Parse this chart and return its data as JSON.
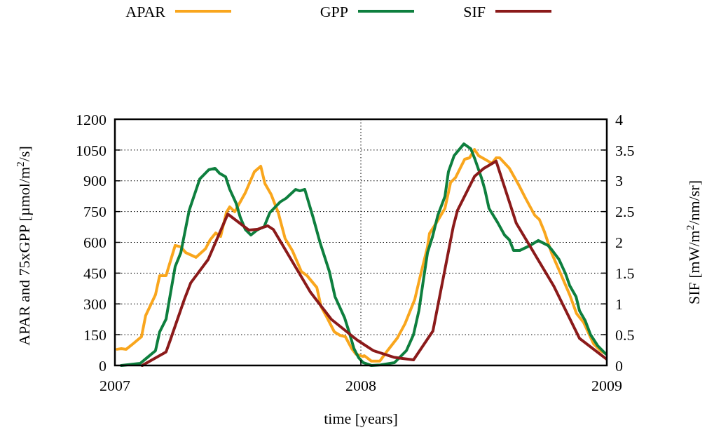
{
  "chart_data": {
    "type": "line",
    "xlabel": "time [years]",
    "ylabel": "APAR and 75xGPP [µmol/m$^{2}$/s]",
    "y2label": "SIF [mW/m$^{2}$/nm/sr]",
    "xlim": [
      2007,
      2009
    ],
    "xticks": [
      2007,
      2008,
      2009
    ],
    "ylim": [
      0,
      1200
    ],
    "yticks": [
      0,
      150,
      300,
      450,
      600,
      750,
      900,
      1050,
      1200
    ],
    "y2lim": [
      0,
      4
    ],
    "y2ticks": [
      0,
      0.5,
      1,
      1.5,
      2,
      2.5,
      3,
      3.5,
      4
    ],
    "grid": true,
    "legend": "top",
    "line_style": "solid",
    "marker": "none",
    "series": [
      {
        "name": "APAR",
        "color": "#f9a61d",
        "x": [
          2007.009,
          2007.026,
          2007.046,
          2007.074,
          2007.108,
          2007.125,
          2007.165,
          2007.182,
          2007.208,
          2007.245,
          2007.268,
          2007.288,
          2007.33,
          2007.368,
          2007.387,
          2007.41,
          2007.43,
          2007.453,
          2007.467,
          2007.487,
          2007.53,
          2007.567,
          2007.593,
          2007.61,
          2007.635,
          2007.664,
          2007.692,
          2007.721,
          2007.758,
          2007.781,
          2007.821,
          2007.838,
          2007.863,
          2007.892,
          2007.915,
          2007.937,
          2007.963,
          2007.98,
          2008.009,
          2008.014,
          2008.043,
          2008.077,
          2008.108,
          2008.148,
          2008.179,
          2008.219,
          2008.242,
          2008.271,
          2008.279,
          2008.308,
          2008.342,
          2008.365,
          2008.385,
          2008.422,
          2008.442,
          2008.462,
          2008.479,
          2008.504,
          2008.533,
          2008.55,
          2008.564,
          2008.604,
          2008.641,
          2008.67,
          2008.707,
          2008.726,
          2008.746,
          2008.775,
          2008.812,
          2008.849,
          2008.877,
          2008.906,
          2008.946,
          2008.974,
          2009.0
        ],
        "values": [
          79,
          82,
          79,
          106,
          140,
          243,
          345,
          438,
          438,
          585,
          578,
          550,
          527,
          568,
          612,
          646,
          629,
          745,
          773,
          749,
          841,
          944,
          971,
          886,
          834,
          745,
          619,
          561,
          458,
          438,
          380,
          287,
          232,
          164,
          147,
          140,
          82,
          55,
          44,
          48,
          21,
          21,
          72,
          133,
          202,
          321,
          438,
          578,
          643,
          697,
          766,
          892,
          916,
          1005,
          1012,
          1053,
          1022,
          1005,
          985,
          1012,
          1012,
          961,
          882,
          814,
          732,
          711,
          653,
          550,
          448,
          345,
          253,
          209,
          106,
          72,
          55
        ]
      },
      {
        "name": "GPP",
        "color": "#0e7f3e",
        "x": [
          2007.026,
          2007.103,
          2007.131,
          2007.165,
          2007.182,
          2007.208,
          2007.225,
          2007.245,
          2007.268,
          2007.302,
          2007.345,
          2007.382,
          2007.407,
          2007.425,
          2007.45,
          2007.467,
          2007.493,
          2007.51,
          2007.53,
          2007.553,
          2007.578,
          2007.607,
          2007.63,
          2007.672,
          2007.695,
          2007.735,
          2007.752,
          2007.772,
          2007.806,
          2007.835,
          2007.872,
          2007.895,
          2007.934,
          2007.952,
          2007.972,
          2007.991,
          2008.009,
          2008.043,
          2008.08,
          2008.137,
          2008.185,
          2008.214,
          2008.236,
          2008.251,
          2008.271,
          2008.291,
          2008.313,
          2008.342,
          2008.356,
          2008.379,
          2008.419,
          2008.447,
          2008.464,
          2008.49,
          2008.504,
          2008.521,
          2008.556,
          2008.584,
          2008.604,
          2008.621,
          2008.647,
          2008.689,
          2008.721,
          2008.761,
          2008.778,
          2008.806,
          2008.832,
          2008.849,
          2008.875,
          2008.889,
          2008.912,
          2008.934,
          2008.963,
          2008.997
        ],
        "values": [
          0,
          10,
          38,
          72,
          164,
          226,
          345,
          482,
          550,
          756,
          909,
          954,
          961,
          937,
          920,
          858,
          790,
          721,
          663,
          636,
          660,
          677,
          745,
          797,
          814,
          858,
          851,
          858,
          721,
          595,
          458,
          335,
          232,
          164,
          82,
          38,
          14,
          0,
          3,
          14,
          72,
          150,
          267,
          390,
          550,
          626,
          732,
          824,
          944,
          1022,
          1080,
          1056,
          1005,
          916,
          858,
          766,
          697,
          636,
          612,
          561,
          561,
          585,
          609,
          585,
          561,
          516,
          448,
          390,
          335,
          267,
          219,
          150,
          96,
          55
        ]
      },
      {
        "name": "SIF",
        "color": "#8b1a1a",
        "axis": "y2",
        "x": [
          2007.111,
          2007.208,
          2007.225,
          2007.282,
          2007.308,
          2007.379,
          2007.459,
          2007.544,
          2007.578,
          2007.621,
          2007.644,
          2007.795,
          2007.88,
          2007.986,
          2008.051,
          2008.137,
          2008.214,
          2008.293,
          2008.376,
          2008.393,
          2008.462,
          2008.499,
          2008.55,
          2008.632,
          2008.783,
          2008.889,
          2009.0
        ],
        "values": [
          0,
          0.22,
          0.41,
          1.07,
          1.34,
          1.72,
          2.46,
          2.2,
          2.21,
          2.27,
          2.21,
          1.19,
          0.75,
          0.41,
          0.24,
          0.13,
          0.09,
          0.56,
          2.26,
          2.52,
          3.07,
          3.2,
          3.32,
          2.31,
          1.3,
          0.44,
          0.1
        ]
      }
    ]
  }
}
